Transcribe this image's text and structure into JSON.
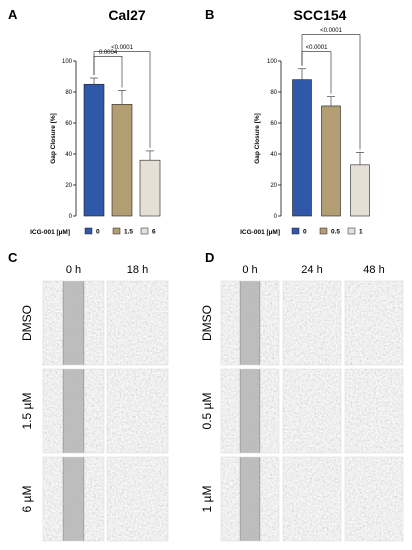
{
  "panels": {
    "A": "A",
    "B": "B",
    "C": "C",
    "D": "D"
  },
  "chart_data": [
    {
      "type": "bar",
      "title": "Cal27",
      "ylabel": "Gap Closure [%]",
      "ylim": [
        0,
        100
      ],
      "yticks": [
        0,
        20,
        40,
        60,
        80,
        100
      ],
      "categories": [
        "0",
        "1.5",
        "6"
      ],
      "values": [
        85,
        72,
        36
      ],
      "errors": [
        4,
        9,
        6
      ],
      "colors": [
        "#2f58a8",
        "#b39d72",
        "#e4e0d6"
      ],
      "legend_title": "ICG-001 [µM]",
      "comparisons": [
        {
          "from": 0,
          "to": 1,
          "label": "0.0004"
        },
        {
          "from": 0,
          "to": 2,
          "label": "<0.0001"
        }
      ]
    },
    {
      "type": "bar",
      "title": "SCC154",
      "ylabel": "Gap Closure [%]",
      "ylim": [
        0,
        100
      ],
      "yticks": [
        0,
        20,
        40,
        60,
        80,
        100
      ],
      "categories": [
        "0",
        "0.5",
        "1"
      ],
      "values": [
        88,
        71,
        33
      ],
      "errors": [
        7,
        6,
        8
      ],
      "colors": [
        "#2f58a8",
        "#b39d72",
        "#e4e0d6"
      ],
      "legend_title": "ICG-001 [µM]",
      "comparisons": [
        {
          "from": 0,
          "to": 1,
          "label": "<0.0001"
        },
        {
          "from": 0,
          "to": 2,
          "label": "<0.0001"
        }
      ]
    }
  ],
  "grid_c": {
    "columns": [
      "0 h",
      "18 h"
    ],
    "rows": [
      "DMSO",
      "1.5 µM",
      "6 µM"
    ],
    "gap_at_endpoint": [
      false,
      false,
      false
    ]
  },
  "grid_d": {
    "columns": [
      "0 h",
      "24 h",
      "48 h"
    ],
    "rows": [
      "DMSO",
      "0.5 µM",
      "1 µM"
    ]
  }
}
